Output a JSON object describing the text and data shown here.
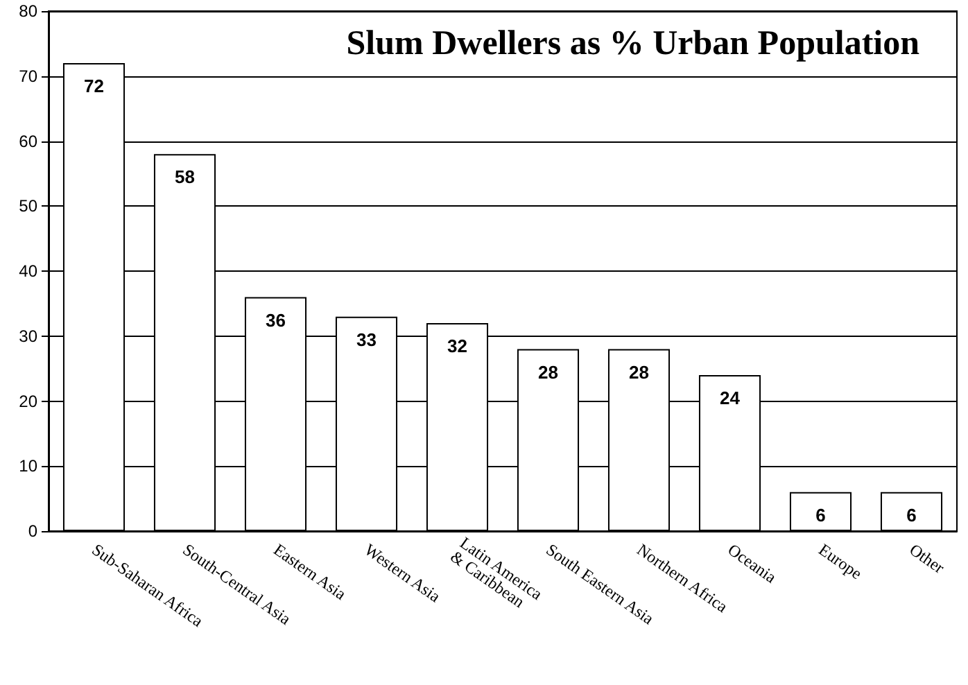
{
  "chart_data": {
    "type": "bar",
    "title": "Slum Dwellers as % Urban Population",
    "categories": [
      "Sub-Saharan Africa",
      "South-Central Asia",
      "Eastern Asia",
      "Western Asia",
      "Latin America\n& Caribbean",
      "South Eastern Asia",
      "Northern Africa",
      "Oceania",
      "Europe",
      "Other"
    ],
    "values": [
      72,
      58,
      36,
      33,
      32,
      28,
      28,
      24,
      6,
      6
    ],
    "color": "#ffffff",
    "ylim": [
      0,
      80
    ],
    "yticks": [
      0,
      10,
      20,
      30,
      40,
      50,
      60,
      70,
      80
    ],
    "grid": "y",
    "data_labels": true
  }
}
